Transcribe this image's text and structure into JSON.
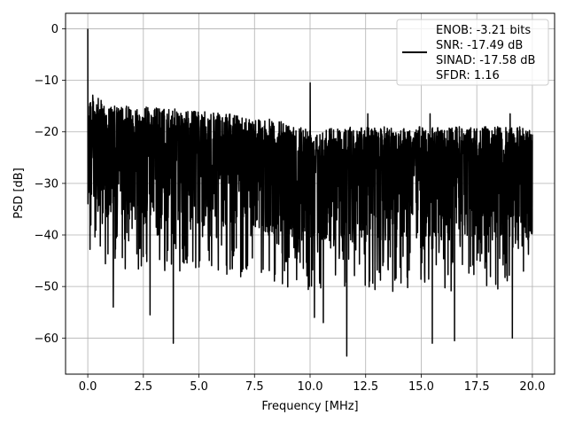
{
  "chart_data": {
    "type": "line",
    "title": "",
    "xlabel": "Frequency [MHz]",
    "ylabel": "PSD [dB]",
    "xlim": [
      -1.0,
      21.0
    ],
    "ylim": [
      -67.0,
      3.0
    ],
    "xticks": [
      0.0,
      2.5,
      5.0,
      7.5,
      10.0,
      12.5,
      15.0,
      17.5,
      20.0
    ],
    "xtick_labels": [
      "0.0",
      "2.5",
      "5.0",
      "7.5",
      "10.0",
      "12.5",
      "15.0",
      "17.5",
      "20.0"
    ],
    "yticks": [
      0,
      -10,
      -20,
      -30,
      -40,
      -50,
      -60
    ],
    "ytick_labels": [
      "0",
      "−10",
      "−20",
      "−30",
      "−40",
      "−50",
      "−60"
    ],
    "grid": true,
    "legend": {
      "position": "top-right",
      "lines": [
        "ENOB: -3.21 bits",
        "SNR: -17.49 dB",
        "SINAD: -17.58 dB",
        "SFDR: 1.16"
      ]
    },
    "series": [
      {
        "color": "#000000",
        "x_range": [
          0.0,
          20.0
        ],
        "noise_floor_top": [
          [
            0.0,
            -12
          ],
          [
            0.3,
            -13
          ],
          [
            1.0,
            -15
          ],
          [
            2.5,
            -15
          ],
          [
            5.0,
            -16
          ],
          [
            7.5,
            -17
          ],
          [
            10.0,
            -19
          ],
          [
            12.5,
            -19
          ],
          [
            15.0,
            -19
          ],
          [
            17.5,
            -19
          ],
          [
            20.0,
            -19
          ]
        ],
        "noise_floor_mean": -30,
        "peaks": [
          {
            "x": 0.0,
            "y": 0.0
          },
          {
            "x": 10.0,
            "y": -10.5
          },
          {
            "x": 12.6,
            "y": -16.5
          },
          {
            "x": 15.4,
            "y": -16.5
          },
          {
            "x": 19.0,
            "y": -16.5
          }
        ],
        "troughs": [
          {
            "x": 1.15,
            "y": -54
          },
          {
            "x": 2.8,
            "y": -55.5
          },
          {
            "x": 3.85,
            "y": -61
          },
          {
            "x": 10.2,
            "y": -56
          },
          {
            "x": 10.6,
            "y": -57
          },
          {
            "x": 11.65,
            "y": -63.5
          },
          {
            "x": 15.5,
            "y": -61
          },
          {
            "x": 16.5,
            "y": -60.5
          },
          {
            "x": 19.1,
            "y": -60
          }
        ]
      }
    ]
  }
}
